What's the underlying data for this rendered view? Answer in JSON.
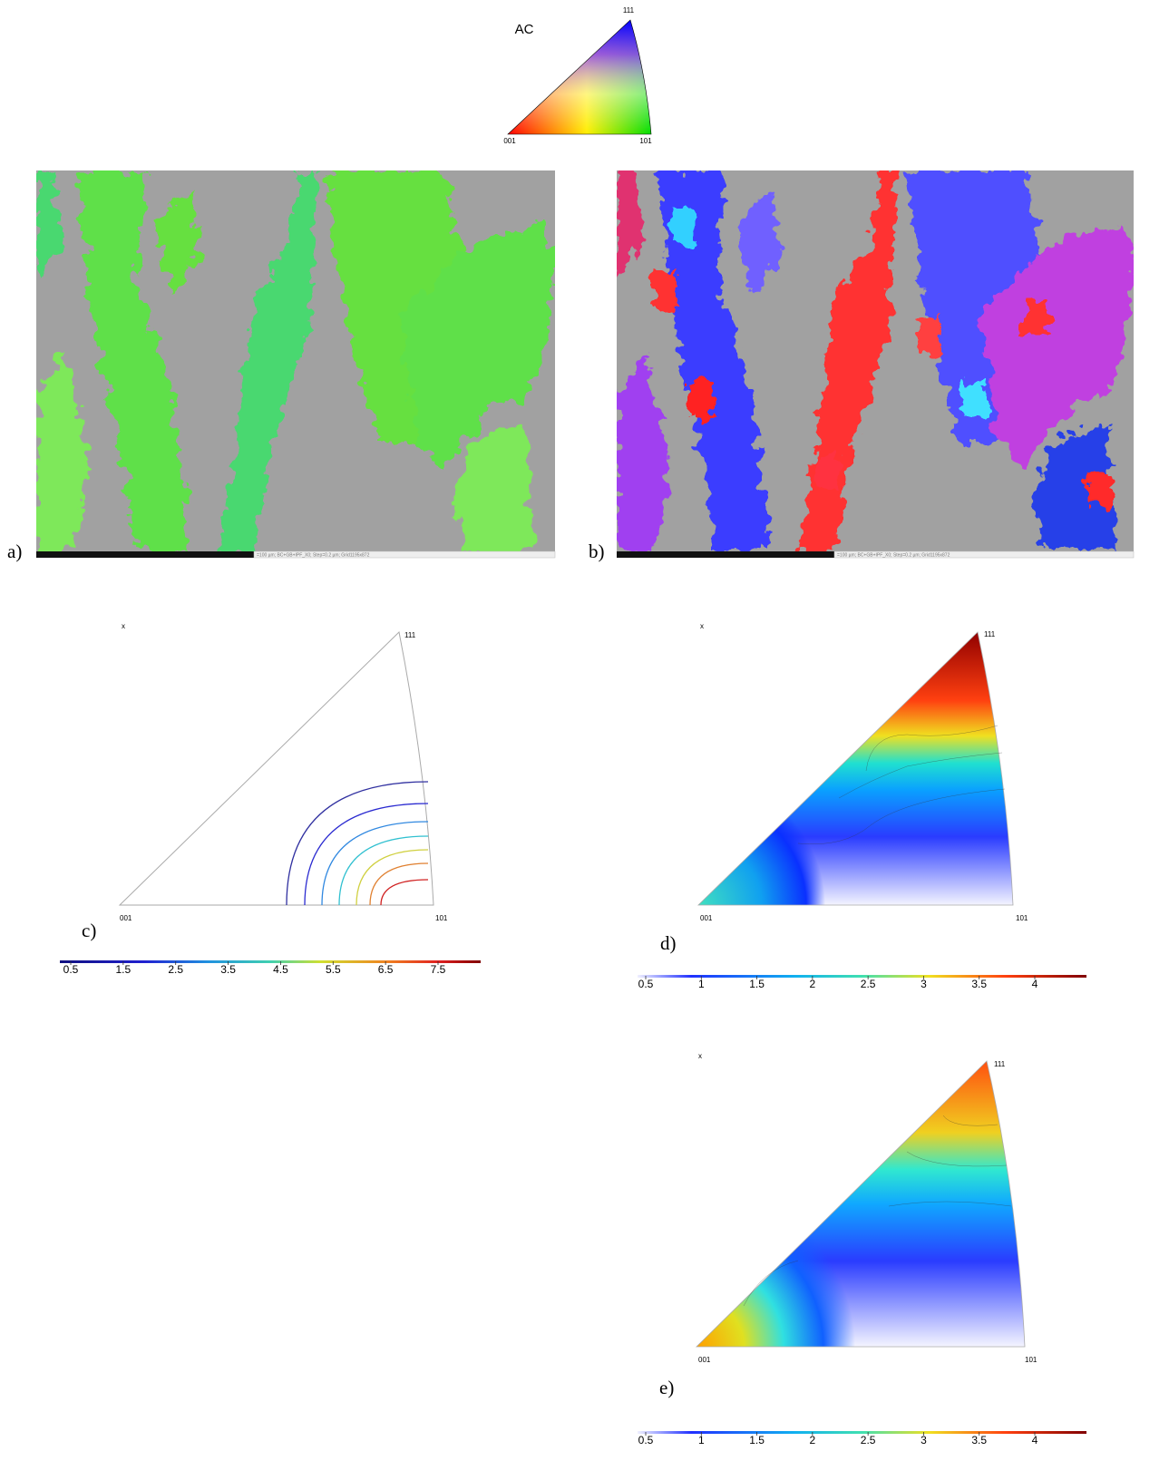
{
  "key": {
    "title": "AC",
    "top": "111",
    "left": "001",
    "right": "101"
  },
  "maps": [
    {
      "label": "a)",
      "scale_text": "=100 µm; BC+GB+IPF_X0; Step=0.2 µm; Grid1195x872"
    },
    {
      "label": "b)",
      "scale_text": "=100 µm; BC+GB+IPF_X0; Step=0.2 µm; Grid1195x872"
    }
  ],
  "ipfs": [
    {
      "label": "c)",
      "axis": "x",
      "top": "111",
      "left": "001",
      "right": "101",
      "colorbar": {
        "ticks": [
          0.5,
          1.5,
          2.5,
          3.5,
          4.5,
          5.5,
          6.5,
          7.5
        ]
      }
    },
    {
      "label": "d)",
      "axis": "x",
      "top": "111",
      "left": "001",
      "right": "101",
      "colorbar": {
        "ticks": [
          0.5,
          1,
          1.5,
          2,
          2.5,
          3,
          3.5,
          4
        ]
      }
    },
    {
      "label": "e)",
      "axis": "x",
      "top": "111",
      "left": "001",
      "right": "101",
      "colorbar": {
        "ticks": [
          0.5,
          1,
          1.5,
          2,
          2.5,
          3,
          3.5,
          4
        ]
      }
    }
  ]
}
